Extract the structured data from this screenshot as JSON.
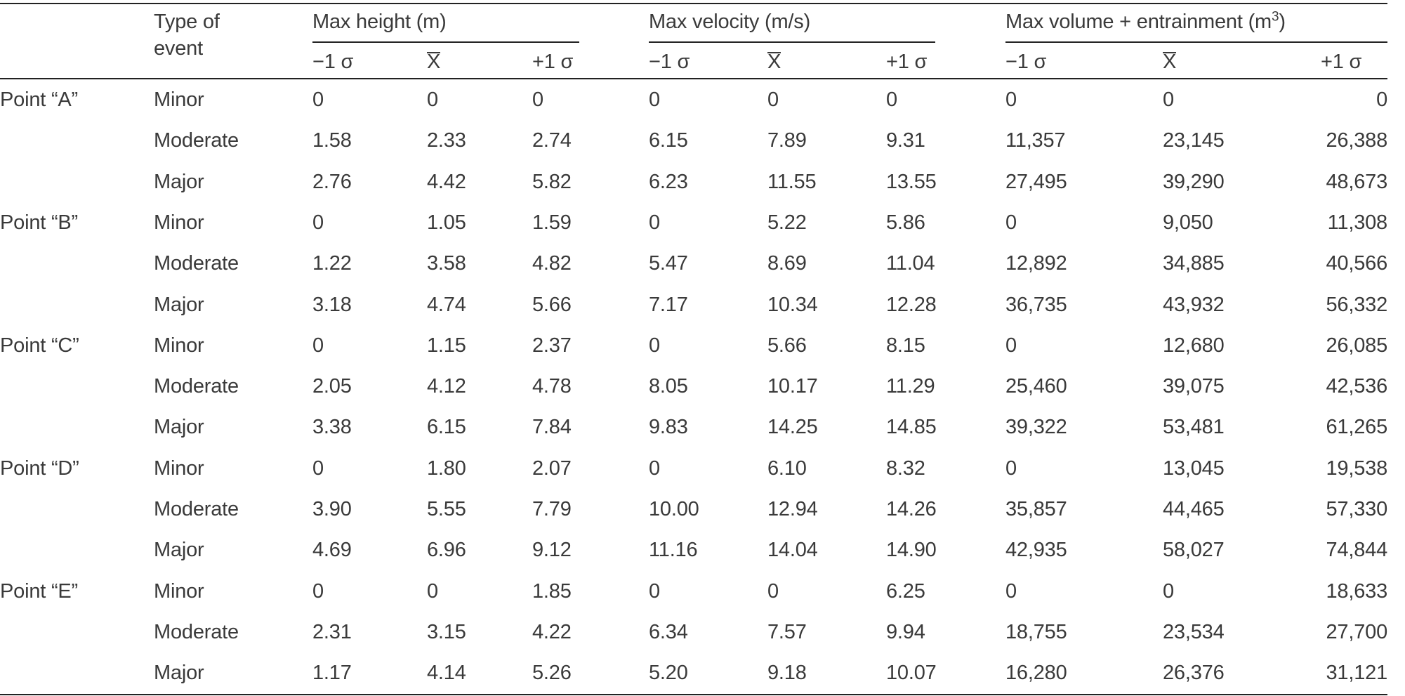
{
  "header": {
    "type_of_event_line1": "Type of",
    "type_of_event_line2": "event",
    "groups": {
      "height": "Max height (m)",
      "velocity": "Max velocity (m/s)",
      "volume_prefix": "Max volume + entrainment (m",
      "volume_sup": "3",
      "volume_suffix": ")"
    },
    "sub": {
      "minus": "−1 σ",
      "mean": "X",
      "plus": "+1 σ"
    }
  },
  "rows": [
    {
      "point": "Point “A”",
      "type": "Minor",
      "h": [
        "0",
        "0",
        "0"
      ],
      "v": [
        "0",
        "0",
        "0"
      ],
      "vol": [
        "0",
        "0",
        "0"
      ]
    },
    {
      "point": "",
      "type": "Moderate",
      "h": [
        "1.58",
        "2.33",
        "2.74"
      ],
      "v": [
        "6.15",
        "7.89",
        "9.31"
      ],
      "vol": [
        "11,357",
        "23,145",
        "26,388"
      ]
    },
    {
      "point": "",
      "type": "Major",
      "h": [
        "2.76",
        "4.42",
        "5.82"
      ],
      "v": [
        "6.23",
        "11.55",
        "13.55"
      ],
      "vol": [
        "27,495",
        "39,290",
        "48,673"
      ]
    },
    {
      "point": "Point “B”",
      "type": "Minor",
      "h": [
        "0",
        "1.05",
        "1.59"
      ],
      "v": [
        "0",
        "5.22",
        "5.86"
      ],
      "vol": [
        "0",
        "9,050",
        "11,308"
      ]
    },
    {
      "point": "",
      "type": "Moderate",
      "h": [
        "1.22",
        "3.58",
        "4.82"
      ],
      "v": [
        "5.47",
        "8.69",
        "11.04"
      ],
      "vol": [
        "12,892",
        "34,885",
        "40,566"
      ]
    },
    {
      "point": "",
      "type": "Major",
      "h": [
        "3.18",
        "4.74",
        "5.66"
      ],
      "v": [
        "7.17",
        "10.34",
        "12.28"
      ],
      "vol": [
        "36,735",
        "43,932",
        "56,332"
      ]
    },
    {
      "point": "Point “C”",
      "type": "Minor",
      "h": [
        "0",
        "1.15",
        "2.37"
      ],
      "v": [
        "0",
        "5.66",
        "8.15"
      ],
      "vol": [
        "0",
        "12,680",
        "26,085"
      ]
    },
    {
      "point": "",
      "type": "Moderate",
      "h": [
        "2.05",
        "4.12",
        "4.78"
      ],
      "v": [
        "8.05",
        "10.17",
        "11.29"
      ],
      "vol": [
        "25,460",
        "39,075",
        "42,536"
      ]
    },
    {
      "point": "",
      "type": "Major",
      "h": [
        "3.38",
        "6.15",
        "7.84"
      ],
      "v": [
        "9.83",
        "14.25",
        "14.85"
      ],
      "vol": [
        "39,322",
        "53,481",
        "61,265"
      ]
    },
    {
      "point": "Point “D”",
      "type": "Minor",
      "h": [
        "0",
        "1.80",
        "2.07"
      ],
      "v": [
        "0",
        "6.10",
        "8.32"
      ],
      "vol": [
        "0",
        "13,045",
        "19,538"
      ]
    },
    {
      "point": "",
      "type": "Moderate",
      "h": [
        "3.90",
        "5.55",
        "7.79"
      ],
      "v": [
        "10.00",
        "12.94",
        "14.26"
      ],
      "vol": [
        "35,857",
        "44,465",
        "57,330"
      ]
    },
    {
      "point": "",
      "type": "Major",
      "h": [
        "4.69",
        "6.96",
        "9.12"
      ],
      "v": [
        "11.16",
        "14.04",
        "14.90"
      ],
      "vol": [
        "42,935",
        "58,027",
        "74,844"
      ]
    },
    {
      "point": "Point “E”",
      "type": "Minor",
      "h": [
        "0",
        "0",
        "1.85"
      ],
      "v": [
        "0",
        "0",
        "6.25"
      ],
      "vol": [
        "0",
        "0",
        "18,633"
      ]
    },
    {
      "point": "",
      "type": "Moderate",
      "h": [
        "2.31",
        "3.15",
        "4.22"
      ],
      "v": [
        "6.34",
        "7.57",
        "9.94"
      ],
      "vol": [
        "18,755",
        "23,534",
        "27,700"
      ]
    },
    {
      "point": "",
      "type": "Major",
      "h": [
        "1.17",
        "4.14",
        "5.26"
      ],
      "v": [
        "5.20",
        "9.18",
        "10.07"
      ],
      "vol": [
        "16,280",
        "26,376",
        "31,121"
      ]
    }
  ]
}
